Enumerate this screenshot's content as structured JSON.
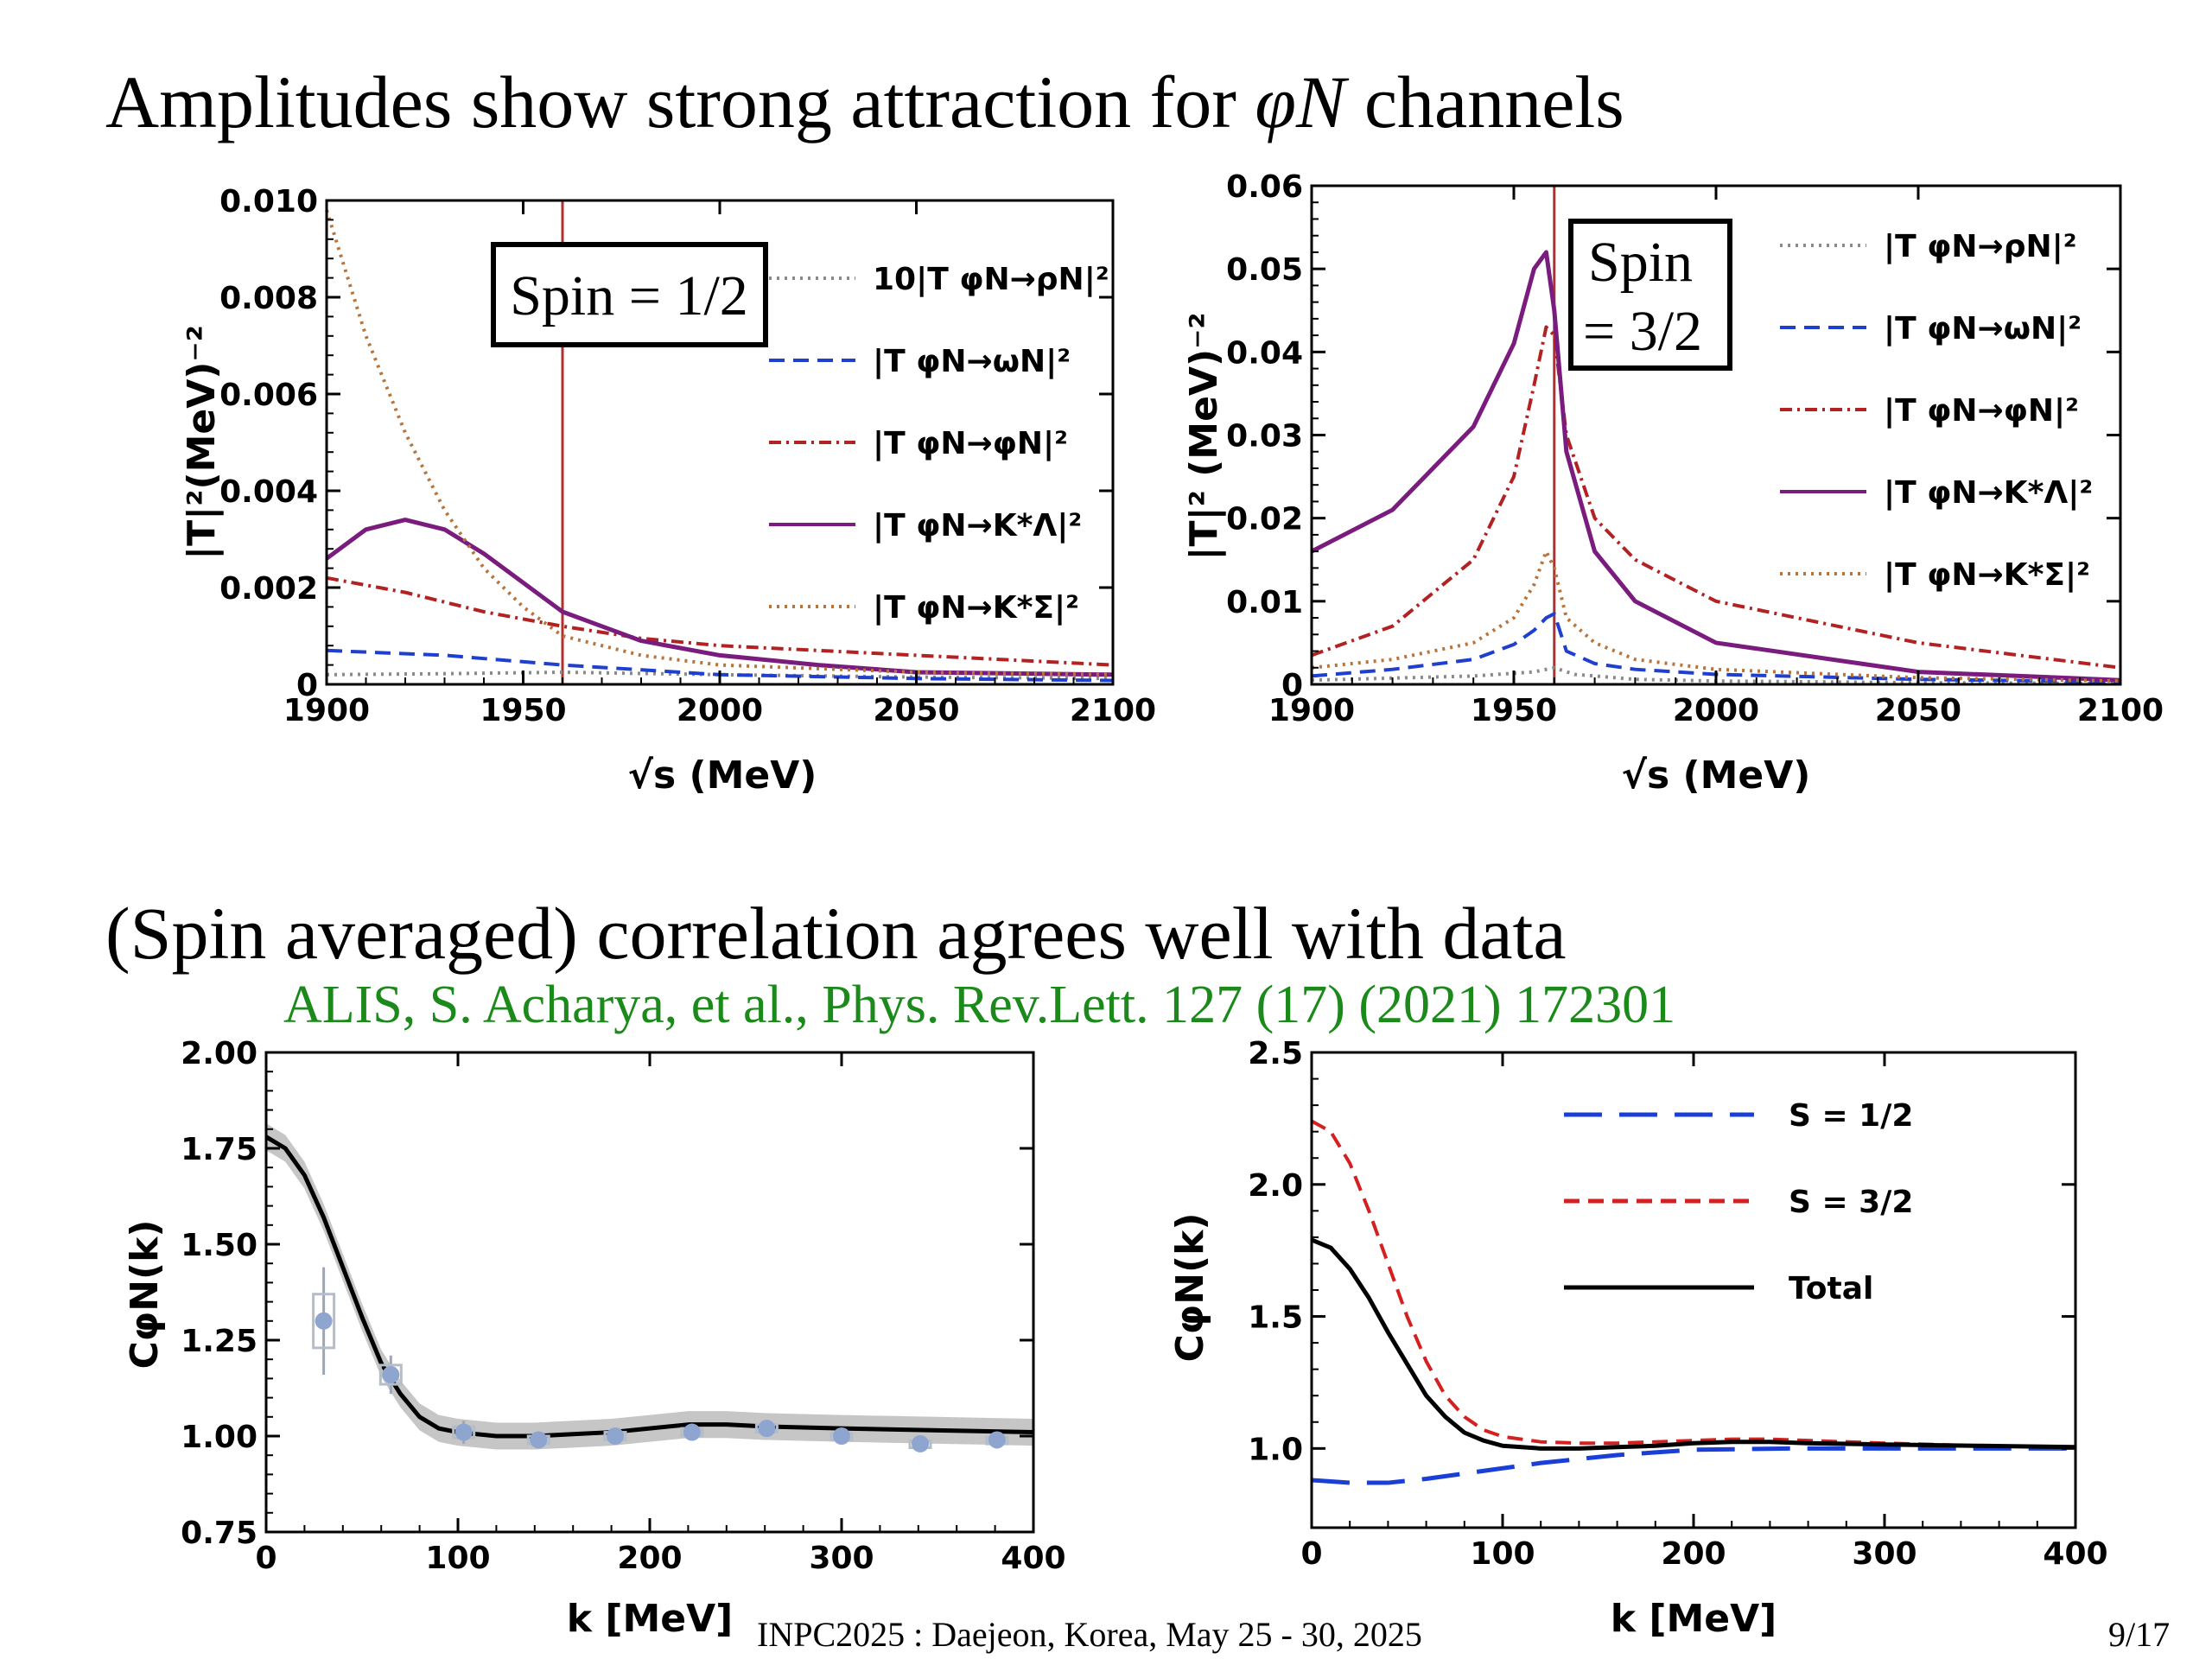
{
  "slide": {
    "heading1_pre": "Amplitudes show strong attraction for ",
    "heading1_math": "φN",
    "heading1_post": " channels",
    "heading2": "(Spin averaged) correlation agrees well with data",
    "reference": "ALIS, S. Acharya, et al., Phys. Rev.Lett. 127 (17) (2021) 172301",
    "footer": "INPC2025 : Daejeon, Korea, May 25 - 30, 2025",
    "page_number": "9/17"
  },
  "colors": {
    "gray": "#8a8a8a",
    "blue": "#1f3fcf",
    "red_dashdot": "#b22222",
    "purple": "#7a1c7e",
    "brown": "#b8743a",
    "vline": "#b03030",
    "data_points": "#8ea6cf",
    "band": "#b8b8b8",
    "dashed_red": "#d42020",
    "long_dash_blue": "#1a3fd6"
  },
  "chart_data": [
    {
      "type": "line",
      "xlabel": "√s (MeV)",
      "ylabel": "|T|²(MeV)⁻²",
      "xlim": [
        1900,
        2100
      ],
      "ylim": [
        0,
        0.01
      ],
      "xticks": [
        "1900",
        "1950",
        "2000",
        "2050",
        "2100"
      ],
      "yticks": [
        "0",
        "0.002",
        "0.004",
        "0.006",
        "0.008",
        "0.010"
      ],
      "box_label": "Spin = 1/2",
      "vline_x": 1960,
      "legend_position": "top-right",
      "series": [
        {
          "name": "10|T φN→ρN|²",
          "style": "dotted",
          "color": "gray",
          "x": [
            1900,
            1930,
            1960,
            2000,
            2050,
            2100
          ],
          "y": [
            0.0002,
            0.00022,
            0.00025,
            0.0002,
            0.00015,
            0.00012
          ]
        },
        {
          "name": "|T φN→ωN|²",
          "style": "dashed",
          "color": "blue",
          "x": [
            1900,
            1930,
            1960,
            2000,
            2050,
            2100
          ],
          "y": [
            0.0007,
            0.0006,
            0.0004,
            0.0002,
            0.00012,
            8e-05
          ]
        },
        {
          "name": "|T φN→φN|²",
          "style": "dashdot",
          "color": "red_dashdot",
          "x": [
            1900,
            1920,
            1940,
            1960,
            1980,
            2000,
            2050,
            2100
          ],
          "y": [
            0.0022,
            0.0019,
            0.0015,
            0.0012,
            0.00095,
            0.0008,
            0.0006,
            0.0004
          ]
        },
        {
          "name": "|T φN→K*Λ|²",
          "style": "solid",
          "color": "purple",
          "x": [
            1900,
            1910,
            1920,
            1930,
            1940,
            1950,
            1960,
            1970,
            1980,
            2000,
            2025,
            2050,
            2100
          ],
          "y": [
            0.0026,
            0.0032,
            0.0034,
            0.0032,
            0.0027,
            0.0021,
            0.0015,
            0.0012,
            0.0009,
            0.0006,
            0.0004,
            0.00025,
            0.0002
          ]
        },
        {
          "name": "|T φN→K*Σ|²",
          "style": "dotted",
          "color": "brown",
          "x": [
            1900,
            1910,
            1920,
            1930,
            1940,
            1950,
            1960,
            1980,
            2000,
            2050,
            2100
          ],
          "y": [
            0.0098,
            0.0072,
            0.0052,
            0.0036,
            0.0024,
            0.0016,
            0.001,
            0.0006,
            0.0004,
            0.00025,
            0.0002
          ]
        }
      ]
    },
    {
      "type": "line",
      "xlabel": "√s (MeV)",
      "ylabel": "|T|² (MeV)⁻²",
      "xlim": [
        1900,
        2100
      ],
      "ylim": [
        0,
        0.06
      ],
      "xticks": [
        "1900",
        "1950",
        "2000",
        "2050",
        "2100"
      ],
      "yticks": [
        "0",
        "0.01",
        "0.02",
        "0.03",
        "0.04",
        "0.05",
        "0.06"
      ],
      "box_label_line1": "Spin",
      "box_label_line2": "= 3/2",
      "vline_x": 1960,
      "legend_position": "top-right",
      "series": [
        {
          "name": "|T φN→ρN|²",
          "style": "dotted",
          "color": "gray",
          "x": [
            1900,
            1940,
            1955,
            1960,
            1965,
            1980,
            2000,
            2050,
            2100
          ],
          "y": [
            0.0005,
            0.001,
            0.0015,
            0.002,
            0.0012,
            0.0006,
            0.0004,
            0.0002,
            0.0001
          ]
        },
        {
          "name": "|T φN→ωN|²",
          "style": "dashed",
          "color": "blue",
          "x": [
            1900,
            1920,
            1940,
            1950,
            1955,
            1958,
            1960,
            1963,
            1970,
            1980,
            2000,
            2050,
            2100
          ],
          "y": [
            0.001,
            0.0018,
            0.003,
            0.0048,
            0.0065,
            0.008,
            0.0085,
            0.004,
            0.0025,
            0.0018,
            0.0012,
            0.0006,
            0.0003
          ]
        },
        {
          "name": "|T φN→φN|²",
          "style": "dashdot",
          "color": "red_dashdot",
          "x": [
            1900,
            1920,
            1940,
            1950,
            1955,
            1958,
            1960,
            1963,
            1970,
            1980,
            2000,
            2050,
            2100
          ],
          "y": [
            0.0035,
            0.007,
            0.015,
            0.025,
            0.036,
            0.043,
            0.042,
            0.03,
            0.02,
            0.015,
            0.01,
            0.005,
            0.002
          ]
        },
        {
          "name": "|T φN→K*Λ|²",
          "style": "solid",
          "color": "purple",
          "x": [
            1900,
            1920,
            1940,
            1950,
            1955,
            1958,
            1960,
            1963,
            1970,
            1980,
            2000,
            2050,
            2100
          ],
          "y": [
            0.016,
            0.021,
            0.031,
            0.041,
            0.05,
            0.052,
            0.045,
            0.028,
            0.016,
            0.01,
            0.005,
            0.0015,
            0.0005
          ]
        },
        {
          "name": "|T φN→K*Σ|²",
          "style": "dotted",
          "color": "brown",
          "x": [
            1900,
            1920,
            1940,
            1950,
            1955,
            1958,
            1960,
            1963,
            1970,
            1980,
            2000,
            2050,
            2100
          ],
          "y": [
            0.002,
            0.003,
            0.005,
            0.008,
            0.012,
            0.016,
            0.014,
            0.008,
            0.005,
            0.003,
            0.0018,
            0.0008,
            0.0004
          ]
        }
      ]
    },
    {
      "type": "line",
      "xlabel": "k [MeV]",
      "ylabel": "CφN(k)",
      "xlim": [
        0,
        400
      ],
      "ylim": [
        0.75,
        2.0
      ],
      "xticks": [
        "0",
        "100",
        "200",
        "300",
        "400"
      ],
      "yticks": [
        "0.75",
        "1.00",
        "1.25",
        "1.50",
        "1.75",
        "2.00"
      ],
      "series": [
        {
          "name": "",
          "style": "solid-band",
          "color": "black",
          "x": [
            0,
            10,
            20,
            30,
            40,
            50,
            60,
            70,
            80,
            90,
            100,
            120,
            140,
            160,
            180,
            200,
            220,
            240,
            260,
            300,
            350,
            400
          ],
          "y": [
            1.78,
            1.75,
            1.68,
            1.57,
            1.44,
            1.31,
            1.19,
            1.11,
            1.05,
            1.02,
            1.01,
            1.0,
            1.0,
            1.005,
            1.01,
            1.02,
            1.03,
            1.03,
            1.025,
            1.02,
            1.015,
            1.01
          ],
          "band_halfwidth": 0.035
        }
      ],
      "points": {
        "x": [
          30,
          65,
          103,
          142,
          182,
          222,
          261,
          300,
          341,
          381
        ],
        "y": [
          1.3,
          1.16,
          1.01,
          0.99,
          1.0,
          1.01,
          1.02,
          1.0,
          0.98,
          0.99
        ],
        "yerr": [
          0.14,
          0.05,
          0.03,
          0.02,
          0.02,
          0.02,
          0.02,
          0.015,
          0.015,
          0.015
        ]
      }
    },
    {
      "type": "line",
      "xlabel": "k [MeV]",
      "ylabel": "CφN(k)",
      "xlim": [
        0,
        400
      ],
      "ylim": [
        0.7,
        2.5
      ],
      "xticks": [
        "0",
        "100",
        "200",
        "300",
        "400"
      ],
      "yticks": [
        "1.0",
        "1.5",
        "2.0",
        "2.5"
      ],
      "legend_position": "top-right",
      "series": [
        {
          "name": "S = 1/2",
          "style": "longdash",
          "color": "long_dash_blue",
          "x": [
            0,
            20,
            40,
            60,
            80,
            100,
            120,
            140,
            160,
            180,
            200,
            250,
            300,
            400
          ],
          "y": [
            0.88,
            0.87,
            0.87,
            0.885,
            0.905,
            0.925,
            0.945,
            0.96,
            0.975,
            0.985,
            0.995,
            1.0,
            1.0,
            1.0
          ]
        },
        {
          "name": "S = 3/2",
          "style": "dashed",
          "color": "dashed_red",
          "x": [
            0,
            10,
            20,
            30,
            40,
            50,
            60,
            70,
            80,
            90,
            100,
            120,
            140,
            160,
            180,
            200,
            220,
            240,
            260,
            300,
            350,
            400
          ],
          "y": [
            2.24,
            2.2,
            2.08,
            1.9,
            1.7,
            1.5,
            1.33,
            1.2,
            1.12,
            1.07,
            1.045,
            1.025,
            1.02,
            1.02,
            1.025,
            1.03,
            1.035,
            1.035,
            1.03,
            1.02,
            1.01,
            1.005
          ]
        },
        {
          "name": "Total",
          "style": "solid",
          "color": "black",
          "x": [
            0,
            10,
            20,
            30,
            40,
            50,
            60,
            70,
            80,
            90,
            100,
            120,
            140,
            160,
            180,
            200,
            220,
            240,
            260,
            300,
            350,
            400
          ],
          "y": [
            1.79,
            1.76,
            1.68,
            1.57,
            1.44,
            1.32,
            1.2,
            1.12,
            1.06,
            1.03,
            1.01,
            1.0,
            1.0,
            1.005,
            1.01,
            1.02,
            1.025,
            1.025,
            1.02,
            1.015,
            1.01,
            1.005
          ]
        }
      ]
    }
  ]
}
